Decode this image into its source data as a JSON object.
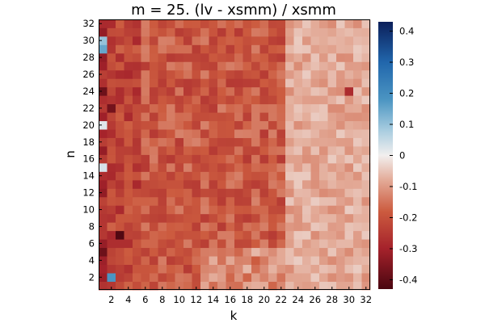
{
  "chart_data": {
    "type": "heatmap",
    "title": "m = 25. (lv - xsmm) / xsmm",
    "xlabel": "k",
    "ylabel": "n",
    "x_range": [
      1,
      32
    ],
    "y_range": [
      1,
      32
    ],
    "x_ticks": [
      "2",
      "4",
      "6",
      "8",
      "10",
      "12",
      "14",
      "16",
      "18",
      "20",
      "22",
      "24",
      "26",
      "28",
      "30",
      "32"
    ],
    "y_ticks": [
      "2",
      "4",
      "6",
      "8",
      "10",
      "12",
      "14",
      "16",
      "18",
      "20",
      "22",
      "24",
      "26",
      "28",
      "30",
      "32"
    ],
    "colorbar": {
      "range": [
        -0.43,
        0.43
      ],
      "ticks": [
        "-0.4",
        "-0.3",
        "-0.2",
        "-0.1",
        "0",
        "0.1",
        "0.2",
        "0.3",
        "0.4"
      ],
      "tick_values": [
        -0.4,
        -0.3,
        -0.2,
        -0.1,
        0,
        0.1,
        0.2,
        0.3,
        0.4
      ],
      "colormap": "diverging red-white-blue",
      "stops": [
        {
          "v": -0.43,
          "color": "#4a0610"
        },
        {
          "v": -0.3,
          "color": "#a5222b"
        },
        {
          "v": -0.18,
          "color": "#cc5b3f"
        },
        {
          "v": -0.08,
          "color": "#e3aa97"
        },
        {
          "v": 0.0,
          "color": "#f2efee"
        },
        {
          "v": 0.08,
          "color": "#a9cde0"
        },
        {
          "v": 0.18,
          "color": "#4b95c2"
        },
        {
          "v": 0.3,
          "color": "#2166ac"
        },
        {
          "v": 0.43,
          "color": "#0b1f5a"
        }
      ]
    },
    "approx_description_values": {
      "general_level_k_1_to_22": -0.19,
      "general_level_k_23_to_32": -0.08,
      "column_k1_mostly": -0.28,
      "notable_cells": [
        {
          "k": 1,
          "n": 29,
          "value": 0.15
        },
        {
          "k": 1,
          "n": 30,
          "value": 0.1
        },
        {
          "k": 2,
          "n": 2,
          "value": 0.18
        },
        {
          "k": 1,
          "n": 15,
          "value": 0.03
        },
        {
          "k": 1,
          "n": 20,
          "value": 0.02
        },
        {
          "k": 1,
          "n": 24,
          "value": -0.38
        },
        {
          "k": 1,
          "n": 5,
          "value": -0.38
        },
        {
          "k": 3,
          "n": 7,
          "value": -0.42
        },
        {
          "k": 2,
          "n": 22,
          "value": -0.37
        },
        {
          "k": 30,
          "n": 24,
          "value": -0.28
        }
      ]
    }
  }
}
